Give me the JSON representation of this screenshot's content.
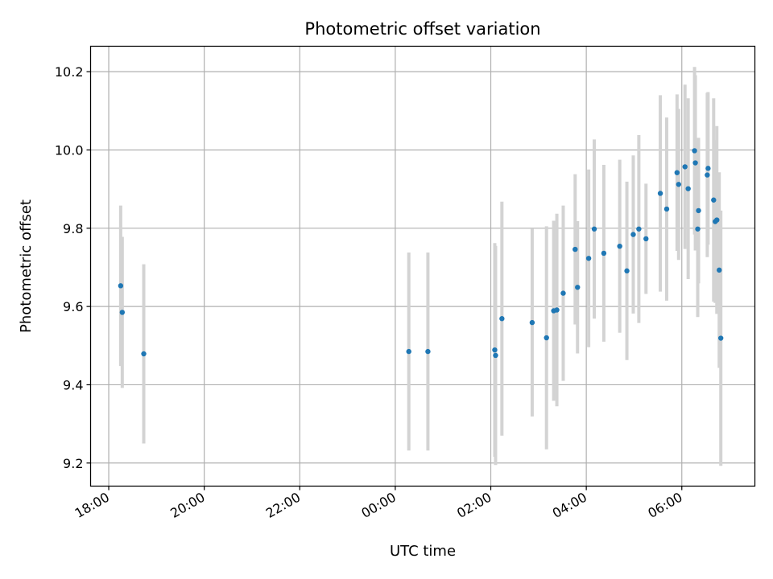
{
  "chart_data": {
    "type": "scatter",
    "title": "Photometric offset variation",
    "xlabel": "UTC time",
    "ylabel": "Photometric offset",
    "x_tick_labels": [
      "18:00",
      "20:00",
      "22:00",
      "00:00",
      "02:00",
      "04:00",
      "06:00"
    ],
    "x_tick_hours": [
      18,
      20,
      22,
      24,
      26,
      28,
      30
    ],
    "y_tick_labels": [
      "9.2",
      "9.4",
      "9.6",
      "9.8",
      "10.0",
      "10.2"
    ],
    "y_tick_values": [
      9.2,
      9.4,
      9.6,
      9.8,
      10.0,
      10.2
    ],
    "xlim_hours": [
      17.62,
      31.53
    ],
    "ylim": [
      9.141,
      10.265
    ],
    "grid": true,
    "colors": {
      "marker": "#1f77b4",
      "errorbar": "#d3d3d3",
      "grid": "#b0b0b0"
    },
    "points": [
      {
        "t": "18:15",
        "y": 9.653,
        "err": 0.205
      },
      {
        "t": "18:17",
        "y": 9.585,
        "err": 0.193
      },
      {
        "t": "18:44",
        "y": 9.479,
        "err": 0.229
      },
      {
        "t": "00:17",
        "y": 9.485,
        "err": 0.253
      },
      {
        "t": "00:41",
        "y": 9.485,
        "err": 0.253
      },
      {
        "t": "02:05",
        "y": 9.489,
        "err": 0.273
      },
      {
        "t": "02:06",
        "y": 9.475,
        "err": 0.28
      },
      {
        "t": "02:14",
        "y": 9.569,
        "err": 0.299
      },
      {
        "t": "02:52",
        "y": 9.559,
        "err": 0.24
      },
      {
        "t": "03:10",
        "y": 9.52,
        "err": 0.285
      },
      {
        "t": "03:19",
        "y": 9.589,
        "err": 0.23
      },
      {
        "t": "03:23",
        "y": 9.591,
        "err": 0.246
      },
      {
        "t": "03:31",
        "y": 9.634,
        "err": 0.224
      },
      {
        "t": "03:46",
        "y": 9.746,
        "err": 0.192
      },
      {
        "t": "03:49",
        "y": 9.649,
        "err": 0.169
      },
      {
        "t": "04:03",
        "y": 9.723,
        "err": 0.227
      },
      {
        "t": "04:10",
        "y": 9.798,
        "err": 0.229
      },
      {
        "t": "04:22",
        "y": 9.736,
        "err": 0.226
      },
      {
        "t": "04:42",
        "y": 9.754,
        "err": 0.221
      },
      {
        "t": "04:51",
        "y": 9.691,
        "err": 0.228
      },
      {
        "t": "04:59",
        "y": 9.784,
        "err": 0.202
      },
      {
        "t": "05:06",
        "y": 9.798,
        "err": 0.24
      },
      {
        "t": "05:15",
        "y": 9.773,
        "err": 0.141
      },
      {
        "t": "05:33",
        "y": 9.889,
        "err": 0.251
      },
      {
        "t": "05:41",
        "y": 9.849,
        "err": 0.234
      },
      {
        "t": "05:54",
        "y": 9.942,
        "err": 0.2
      },
      {
        "t": "05:56",
        "y": 9.912,
        "err": 0.193
      },
      {
        "t": "06:04",
        "y": 9.957,
        "err": 0.21
      },
      {
        "t": "06:08",
        "y": 9.901,
        "err": 0.231
      },
      {
        "t": "06:16",
        "y": 9.998,
        "err": 0.214
      },
      {
        "t": "06:17",
        "y": 9.967,
        "err": 0.224
      },
      {
        "t": "06:20",
        "y": 9.798,
        "err": 0.225
      },
      {
        "t": "06:21",
        "y": 9.845,
        "err": 0.186
      },
      {
        "t": "06:32",
        "y": 9.936,
        "err": 0.21
      },
      {
        "t": "06:33",
        "y": 9.953,
        "err": 0.195
      },
      {
        "t": "06:40",
        "y": 9.872,
        "err": 0.26
      },
      {
        "t": "06:42",
        "y": 9.817,
        "err": 0.208
      },
      {
        "t": "06:44",
        "y": 9.821,
        "err": 0.24
      },
      {
        "t": "06:47",
        "y": 9.693,
        "err": 0.25
      },
      {
        "t": "06:49",
        "y": 9.519,
        "err": 0.326
      }
    ]
  }
}
